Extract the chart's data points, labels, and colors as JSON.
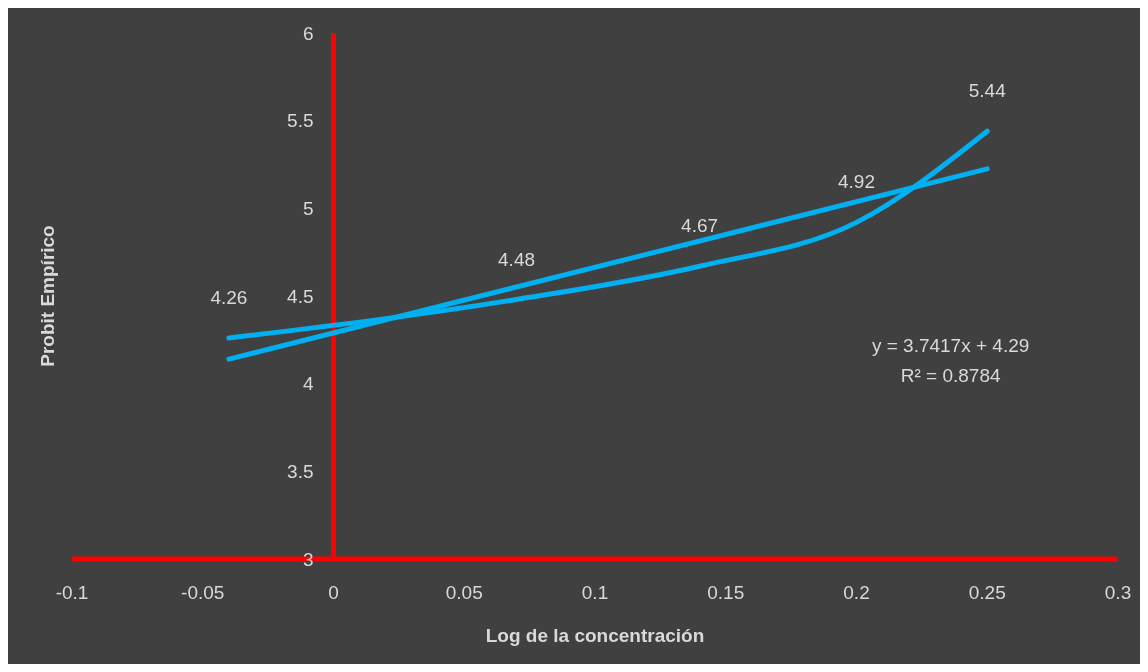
{
  "chart_data": {
    "type": "line",
    "xlabel": "Log de la concentración",
    "ylabel": "Probit Empírico",
    "x": [
      -0.04,
      0.07,
      0.14,
      0.2,
      0.25
    ],
    "series": [
      {
        "color": "#00b0f0",
        "values": [
          4.26,
          4.48,
          4.67,
          4.92,
          5.44
        ],
        "value_labels": [
          "4.26",
          "4.48",
          "4.67",
          "4.92",
          "5.44"
        ]
      },
      {
        "color": "#00b0f0",
        "x": [
          -0.04,
          0.25
        ],
        "values": [
          4.14,
          5.225
        ]
      }
    ],
    "xlim": [
      -0.1,
      0.3
    ],
    "xticks": [
      -0.1,
      -0.05,
      0,
      0.05,
      0.1,
      0.15,
      0.2,
      0.25,
      0.3
    ],
    "ylim": [
      3,
      6
    ],
    "yticks": [
      3,
      3.5,
      4,
      4.5,
      5,
      5.5,
      6
    ],
    "grid": false,
    "marker": "none",
    "line_style": "solid",
    "annotations": [
      "y = 3.7417x + 4.29",
      "R² = 0.8784"
    ]
  }
}
